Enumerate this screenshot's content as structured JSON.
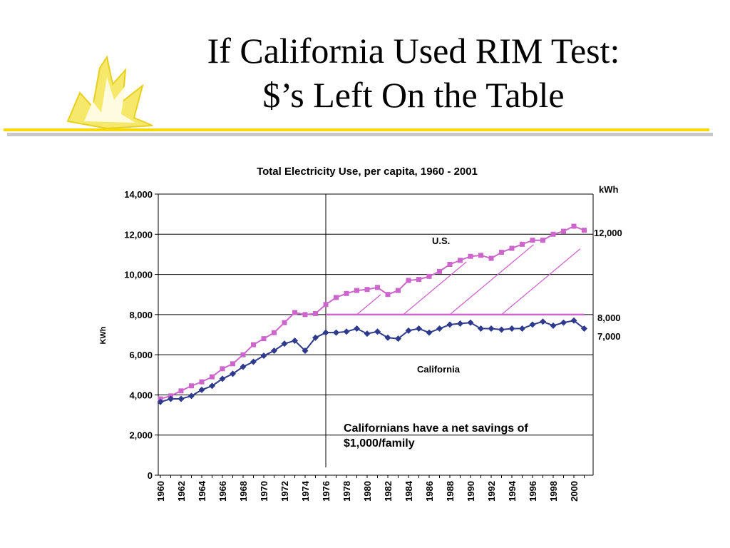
{
  "slide": {
    "title_line1": "If California Used RIM Test:",
    "title_line2": "$’s Left On the Table"
  },
  "colors": {
    "us": "#cc66cc",
    "california": "#2e3a8c",
    "accent": "#f5d90a"
  },
  "chart_data": {
    "type": "line",
    "title": "Total Electricity Use,  per capita, 1960 - 2001",
    "ylabel": "KWh",
    "ylim": [
      0,
      14000
    ],
    "yticks": [
      0,
      2000,
      4000,
      6000,
      8000,
      10000,
      12000,
      14000
    ],
    "ytick_labels": [
      "0",
      "2,000",
      "4,000",
      "6,000",
      "8,000",
      "10,000",
      "12,000",
      "14,000"
    ],
    "xlim": [
      1960,
      2001
    ],
    "xtick_labels": [
      "1960",
      "1962",
      "1964",
      "1966",
      "1968",
      "1970",
      "1972",
      "1974",
      "1976",
      "1978",
      "1980",
      "1982",
      "1984",
      "1986",
      "1988",
      "1990",
      "1992",
      "1994",
      "1996",
      "1998",
      "2000"
    ],
    "x": [
      1960,
      1961,
      1962,
      1963,
      1964,
      1965,
      1966,
      1967,
      1968,
      1969,
      1970,
      1971,
      1972,
      1973,
      1974,
      1975,
      1976,
      1977,
      1978,
      1979,
      1980,
      1981,
      1982,
      1983,
      1984,
      1985,
      1986,
      1987,
      1988,
      1989,
      1990,
      1991,
      1992,
      1993,
      1994,
      1995,
      1996,
      1997,
      1998,
      1999,
      2000,
      2001
    ],
    "grid": true,
    "series": [
      {
        "name": "U.S.",
        "values": [
          3800,
          3950,
          4200,
          4450,
          4650,
          4900,
          5300,
          5550,
          6000,
          6500,
          6800,
          7100,
          7600,
          8100,
          8000,
          8050,
          8500,
          8850,
          9050,
          9200,
          9250,
          9350,
          9000,
          9200,
          9700,
          9750,
          9900,
          10150,
          10500,
          10700,
          10900,
          10950,
          10800,
          11100,
          11300,
          11500,
          11700,
          11700,
          12000,
          12150,
          12400,
          12200
        ]
      },
      {
        "name": "California",
        "values": [
          3650,
          3800,
          3800,
          3950,
          4250,
          4450,
          4800,
          5050,
          5400,
          5650,
          5950,
          6200,
          6550,
          6700,
          6200,
          6850,
          7100,
          7100,
          7150,
          7300,
          7050,
          7150,
          6850,
          6800,
          7200,
          7300,
          7100,
          7300,
          7500,
          7550,
          7600,
          7300,
          7300,
          7250,
          7300,
          7300,
          7500,
          7650,
          7450,
          7600,
          7700,
          7300
        ]
      }
    ],
    "reference_line": {
      "y": 8000,
      "x_start": 1976,
      "x_end": 2001
    },
    "divider_year": 1976,
    "right_axis": {
      "unit": "kWh",
      "labels": [
        "12,000",
        "8,000",
        "7,000"
      ]
    },
    "annotations": {
      "us": "U.S.",
      "california": "California",
      "savings_line1": "Californians have a net savings of",
      "savings_line2": "$1,000/family"
    }
  }
}
